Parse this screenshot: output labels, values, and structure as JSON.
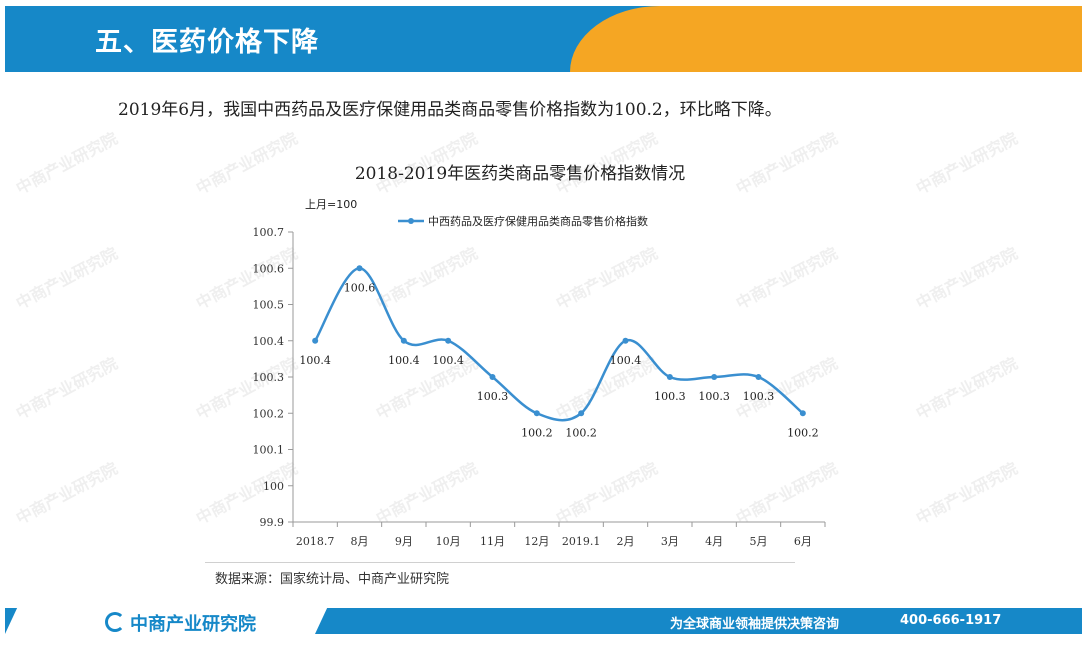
{
  "header": {
    "title": "五、医药价格下降"
  },
  "intro": "2019年6月，我国中西药品及医疗保健用品类商品零售价格指数为100.2，环比略下降。",
  "watermark": "中商产业研究院",
  "source": "数据来源：国家统计局、中商产业研究院",
  "footer": {
    "logo_text": "中商产业研究院",
    "slogan": "为全球商业领袖提供决策咨询",
    "phone": "400-666-1917"
  },
  "colors": {
    "header_blue": "#1688c8",
    "header_orange": "#f5a623",
    "series": "#3a8fd0"
  },
  "chart_data": {
    "type": "line",
    "title": "2018-2019年医药类商品零售价格指数情况",
    "unit_label": "上月=100",
    "categories": [
      "2018.7",
      "8月",
      "9月",
      "10月",
      "11月",
      "12月",
      "2019.1",
      "2月",
      "3月",
      "4月",
      "5月",
      "6月"
    ],
    "series": [
      {
        "name": "中西药品及医疗保健用品类商品零售价格指数",
        "values": [
          100.4,
          100.6,
          100.4,
          100.4,
          100.3,
          100.2,
          100.2,
          100.4,
          100.3,
          100.3,
          100.3,
          100.2
        ],
        "data_labels": [
          "100.4",
          "100.6",
          "100.4",
          "100.4",
          "100.3",
          "100.2",
          "100.2",
          "100.4",
          "100.3",
          "100.3",
          "100.3",
          "100.2"
        ]
      }
    ],
    "yticks": [
      99.9,
      100,
      100.1,
      100.2,
      100.3,
      100.4,
      100.5,
      100.6,
      100.7
    ],
    "ytick_labels": [
      "99.9",
      "100",
      "100.1",
      "100.2",
      "100.3",
      "100.4",
      "100.5",
      "100.6",
      "100.7"
    ],
    "ylim": [
      99.9,
      100.7
    ],
    "smooth": true,
    "grid": false,
    "legend_position": "top-right"
  }
}
